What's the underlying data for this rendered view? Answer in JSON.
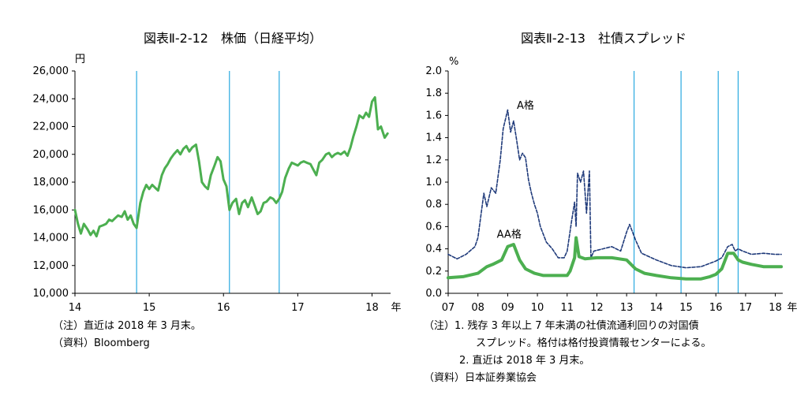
{
  "colors": {
    "stock": "#4caf50",
    "aa": "#4caf50",
    "a": "#1f3a7a",
    "vline": "#29a9e0",
    "axis": "#000000"
  },
  "chart_data": [
    {
      "type": "line",
      "title": "図表Ⅱ-2-12　株価（日経平均）",
      "unit": "円",
      "x_unit": "年",
      "xlim": [
        14,
        18.25
      ],
      "ylim": [
        10000,
        26000
      ],
      "y_ticks": [
        10000,
        12000,
        14000,
        16000,
        18000,
        20000,
        22000,
        24000,
        26000
      ],
      "y_tick_labels": [
        "10,000",
        "12,000",
        "14,000",
        "16,000",
        "18,000",
        "20,000",
        "22,000",
        "24,000",
        "26,000"
      ],
      "x_ticks": [
        14,
        15,
        16,
        17,
        18
      ],
      "x_tick_labels": [
        "14",
        "15",
        "16",
        "17",
        "18"
      ],
      "vlines": [
        14.83,
        16.08,
        16.75
      ],
      "series": [
        {
          "name": "日経平均",
          "x": [
            14.0,
            14.04,
            14.08,
            14.12,
            14.17,
            14.21,
            14.25,
            14.29,
            14.33,
            14.38,
            14.42,
            14.46,
            14.5,
            14.54,
            14.58,
            14.63,
            14.67,
            14.71,
            14.75,
            14.79,
            14.83,
            14.88,
            14.92,
            14.96,
            15.0,
            15.04,
            15.08,
            15.12,
            15.17,
            15.21,
            15.25,
            15.29,
            15.33,
            15.38,
            15.42,
            15.46,
            15.5,
            15.54,
            15.58,
            15.63,
            15.67,
            15.71,
            15.75,
            15.79,
            15.83,
            15.88,
            15.92,
            15.96,
            16.0,
            16.04,
            16.08,
            16.12,
            16.17,
            16.21,
            16.25,
            16.29,
            16.33,
            16.38,
            16.42,
            16.46,
            16.5,
            16.54,
            16.58,
            16.63,
            16.67,
            16.71,
            16.75,
            16.79,
            16.83,
            16.88,
            16.92,
            16.96,
            17.0,
            17.04,
            17.08,
            17.12,
            17.17,
            17.21,
            17.25,
            17.29,
            17.33,
            17.38,
            17.42,
            17.46,
            17.5,
            17.54,
            17.58,
            17.63,
            17.67,
            17.71,
            17.75,
            17.79,
            17.83,
            17.88,
            17.92,
            17.96,
            18.0,
            18.04,
            18.08,
            18.12,
            18.17,
            18.21
          ],
          "values": [
            16000,
            15000,
            14300,
            15000,
            14600,
            14200,
            14500,
            14100,
            14800,
            14900,
            15000,
            15300,
            15200,
            15400,
            15600,
            15500,
            15900,
            15300,
            15600,
            15000,
            14700,
            16500,
            17300,
            17800,
            17500,
            17800,
            17600,
            17400,
            18500,
            19000,
            19300,
            19700,
            20000,
            20300,
            20000,
            20400,
            20600,
            20200,
            20500,
            20700,
            19500,
            18000,
            17700,
            17500,
            18500,
            19200,
            19800,
            19500,
            18200,
            17700,
            16000,
            16500,
            16800,
            15700,
            16500,
            16700,
            16200,
            16900,
            16300,
            15700,
            15900,
            16500,
            16600,
            16900,
            16800,
            16500,
            16800,
            17300,
            18300,
            19000,
            19400,
            19300,
            19200,
            19400,
            19500,
            19400,
            19300,
            18900,
            18500,
            19400,
            19600,
            20000,
            20100,
            19800,
            20000,
            20100,
            20000,
            20200,
            19900,
            20500,
            21300,
            22000,
            22800,
            22600,
            23000,
            22700,
            23800,
            24100,
            21800,
            22000,
            21200,
            21500
          ]
        }
      ],
      "notes": [
        "（注）直近は 2018 年 3 月末。",
        "（資料）Bloomberg"
      ]
    },
    {
      "type": "line",
      "title": "図表Ⅱ-2-13　社債スプレッド",
      "unit": "%",
      "x_unit": "年",
      "xlim": [
        7,
        18.25
      ],
      "ylim": [
        0,
        2.0
      ],
      "y_ticks": [
        0,
        0.2,
        0.4,
        0.6,
        0.8,
        1.0,
        1.2,
        1.4,
        1.6,
        1.8,
        2.0
      ],
      "y_tick_labels": [
        "0.0",
        "0.2",
        "0.4",
        "0.6",
        "0.8",
        "1.0",
        "1.2",
        "1.4",
        "1.6",
        "1.8",
        "2.0"
      ],
      "x_ticks": [
        7,
        8,
        9,
        10,
        11,
        12,
        13,
        14,
        15,
        16,
        17,
        18
      ],
      "x_tick_labels": [
        "07",
        "08",
        "09",
        "10",
        "11",
        "12",
        "13",
        "14",
        "15",
        "16",
        "17",
        "18"
      ],
      "vlines": [
        13.25,
        14.83,
        16.08,
        16.75
      ],
      "series": [
        {
          "name": "A格",
          "style": "dashed",
          "x": [
            7.0,
            7.3,
            7.6,
            7.9,
            8.0,
            8.2,
            8.3,
            8.45,
            8.6,
            8.75,
            8.85,
            9.0,
            9.1,
            9.2,
            9.3,
            9.4,
            9.5,
            9.6,
            9.7,
            9.8,
            9.9,
            10.0,
            10.1,
            10.3,
            10.5,
            10.7,
            10.9,
            11.0,
            11.15,
            11.25,
            11.3,
            11.35,
            11.45,
            11.55,
            11.65,
            11.75,
            11.8,
            11.9,
            12.2,
            12.5,
            12.8,
            13.0,
            13.1,
            13.2,
            13.3,
            13.5,
            14.0,
            14.5,
            15.0,
            15.5,
            16.0,
            16.2,
            16.4,
            16.55,
            16.65,
            16.75,
            16.9,
            17.2,
            17.6,
            18.0,
            18.2
          ],
          "values": [
            0.35,
            0.31,
            0.35,
            0.42,
            0.5,
            0.9,
            0.78,
            0.95,
            0.9,
            1.2,
            1.48,
            1.65,
            1.45,
            1.55,
            1.38,
            1.2,
            1.26,
            1.22,
            1.02,
            0.9,
            0.8,
            0.72,
            0.6,
            0.46,
            0.4,
            0.32,
            0.32,
            0.38,
            0.65,
            0.82,
            0.6,
            1.08,
            1.0,
            1.1,
            0.72,
            1.1,
            0.32,
            0.38,
            0.4,
            0.42,
            0.38,
            0.55,
            0.62,
            0.55,
            0.48,
            0.36,
            0.3,
            0.25,
            0.23,
            0.24,
            0.29,
            0.32,
            0.42,
            0.44,
            0.38,
            0.4,
            0.38,
            0.35,
            0.36,
            0.35,
            0.35
          ]
        },
        {
          "name": "AA格",
          "style": "solid",
          "x": [
            7.0,
            7.5,
            8.0,
            8.3,
            8.5,
            8.8,
            9.0,
            9.2,
            9.4,
            9.6,
            9.9,
            10.2,
            10.6,
            11.0,
            11.1,
            11.25,
            11.3,
            11.4,
            11.6,
            12.0,
            12.5,
            13.0,
            13.3,
            13.6,
            14.0,
            14.5,
            15.0,
            15.5,
            15.8,
            16.0,
            16.2,
            16.4,
            16.6,
            16.75,
            16.9,
            17.2,
            17.6,
            18.0,
            18.2
          ],
          "values": [
            0.14,
            0.15,
            0.18,
            0.24,
            0.26,
            0.3,
            0.42,
            0.44,
            0.3,
            0.22,
            0.18,
            0.16,
            0.16,
            0.16,
            0.2,
            0.32,
            0.5,
            0.33,
            0.31,
            0.32,
            0.32,
            0.3,
            0.22,
            0.18,
            0.16,
            0.14,
            0.13,
            0.13,
            0.15,
            0.17,
            0.22,
            0.36,
            0.36,
            0.3,
            0.28,
            0.26,
            0.24,
            0.24,
            0.24
          ]
        }
      ],
      "annotations": [
        {
          "text": "A格",
          "x": 9.6,
          "y": 1.66
        },
        {
          "text": "AA格",
          "x": 9.05,
          "y": 0.5
        }
      ],
      "notes": [
        "（注）1. 残存 3 年以上 7 年未満の社債流通利回りの対国債",
        "スプレッド。格付は格付投資情報センターによる。",
        "2. 直近は 2018 年 3 月末。",
        "（資料）日本証券業協会"
      ]
    }
  ]
}
